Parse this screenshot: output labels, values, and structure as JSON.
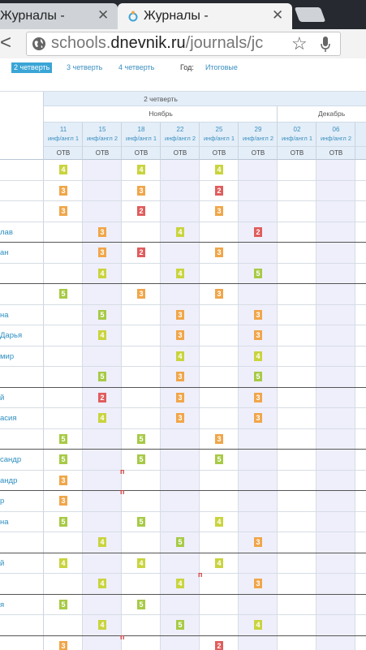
{
  "browser": {
    "tabs": [
      {
        "title": "Журналы -"
      },
      {
        "title": "Журналы -"
      }
    ],
    "url": {
      "prefix": "schools.",
      "domain": "dnevnik.ru",
      "path": "/journals/jc"
    }
  },
  "quarter_nav": {
    "quarters": [
      {
        "label": "2 четверть",
        "active": true
      },
      {
        "label": "3 четверть",
        "active": false
      },
      {
        "label": "4 четверть",
        "active": false
      }
    ],
    "year_label": "Год:",
    "totals_label": "Итоговые"
  },
  "journal": {
    "quarter_title": "2 четверть",
    "months": [
      "Ноябрь",
      "Декабрь"
    ],
    "columns": [
      {
        "day": "11",
        "lesson": "инф/англ 1",
        "type": "ОТВ"
      },
      {
        "day": "15",
        "lesson": "инф/англ 2",
        "type": "ОТВ"
      },
      {
        "day": "18",
        "lesson": "инф/англ 1",
        "type": "ОТВ"
      },
      {
        "day": "22",
        "lesson": "инф/англ 2",
        "type": "ОТВ"
      },
      {
        "day": "25",
        "lesson": "инф/англ 1",
        "type": "ОТВ"
      },
      {
        "day": "29",
        "lesson": "инф/англ 2",
        "type": "ОТВ"
      },
      {
        "day": "02",
        "lesson": "инф/англ 1",
        "type": "ОТВ"
      },
      {
        "day": "06",
        "lesson": "инф/англ 2",
        "type": "ОТВ"
      },
      {
        "day": "",
        "lesson": "",
        "type": "ОТВ"
      }
    ],
    "rows": [
      {
        "name": "",
        "marks": [
          "4",
          "",
          "4",
          "",
          "4",
          "",
          "",
          "",
          ""
        ]
      },
      {
        "name": "",
        "marks": [
          "3",
          "",
          "3",
          "",
          "2",
          "",
          "",
          "",
          ""
        ]
      },
      {
        "name": "",
        "marks": [
          "3",
          "",
          "2",
          "",
          "3",
          "",
          "",
          "",
          ""
        ]
      },
      {
        "name": "лав",
        "marks": [
          "",
          "3",
          "",
          "4",
          "",
          "2",
          "",
          "",
          ""
        ]
      },
      {
        "name": "ан",
        "marks": [
          "",
          "3",
          "2",
          "",
          "3",
          "",
          "",
          "",
          ""
        ]
      },
      {
        "name": "",
        "marks": [
          "",
          "4",
          "",
          "4",
          "",
          "5",
          "",
          "",
          ""
        ]
      },
      {
        "name": "",
        "marks": [
          "5",
          "",
          "3",
          "",
          "3",
          "",
          "",
          "",
          ""
        ]
      },
      {
        "name": "на",
        "marks": [
          "",
          "5",
          "",
          "3",
          "",
          "3",
          "",
          "",
          ""
        ]
      },
      {
        "name": "Дарья",
        "marks": [
          "",
          "4",
          "",
          "3",
          "",
          "3",
          "",
          "",
          ""
        ]
      },
      {
        "name": "мир",
        "marks": [
          "",
          "",
          "",
          "4",
          "",
          "4",
          "",
          "",
          ""
        ]
      },
      {
        "name": "",
        "marks": [
          "",
          "5",
          "",
          "3",
          "",
          "5",
          "",
          "",
          ""
        ]
      },
      {
        "name": "й",
        "marks": [
          "",
          "2",
          "",
          "3",
          "",
          "3",
          "",
          "",
          ""
        ]
      },
      {
        "name": "асия",
        "marks": [
          "",
          "4",
          "",
          "3",
          "",
          "3",
          "",
          "",
          ""
        ]
      },
      {
        "name": "",
        "marks": [
          "5",
          "",
          "5",
          "",
          "3",
          "",
          "",
          "",
          ""
        ]
      },
      {
        "name": "сандр",
        "marks": [
          "5",
          "",
          "5",
          "",
          "5",
          "",
          "",
          "",
          ""
        ]
      },
      {
        "name": "андр",
        "marks": [
          "3",
          "",
          "п",
          "",
          "",
          "",
          "",
          "",
          ""
        ]
      },
      {
        "name": "р",
        "marks": [
          "3",
          "",
          "п",
          "",
          "",
          "",
          "",
          "",
          ""
        ]
      },
      {
        "name": "на",
        "marks": [
          "5",
          "",
          "5",
          "",
          "4",
          "",
          "",
          "",
          ""
        ]
      },
      {
        "name": "",
        "marks": [
          "",
          "4",
          "",
          "5",
          "",
          "3",
          "",
          "",
          ""
        ]
      },
      {
        "name": "й",
        "marks": [
          "4",
          "",
          "4",
          "",
          "4",
          "",
          "",
          "",
          ""
        ]
      },
      {
        "name": "",
        "marks": [
          "",
          "4",
          "",
          "4",
          "п",
          "3",
          "",
          "",
          ""
        ]
      },
      {
        "name": "я",
        "marks": [
          "5",
          "",
          "5",
          "",
          "",
          "",
          "",
          "",
          ""
        ]
      },
      {
        "name": "",
        "marks": [
          "",
          "4",
          "",
          "5",
          "",
          "4",
          "",
          "",
          ""
        ]
      },
      {
        "name": "",
        "marks": [
          "3",
          "",
          "п",
          "",
          "2",
          "",
          "",
          "",
          ""
        ]
      }
    ]
  },
  "colors": {
    "mark_5": "#a7ca46",
    "mark_4": "#c9d43e",
    "mark_3": "#f0a64a",
    "mark_2": "#e05d5d",
    "absent": "#d23b3b",
    "link": "#2e8ec0",
    "header_bg": "#e4eef8",
    "shaded_column": "#efeffb"
  }
}
